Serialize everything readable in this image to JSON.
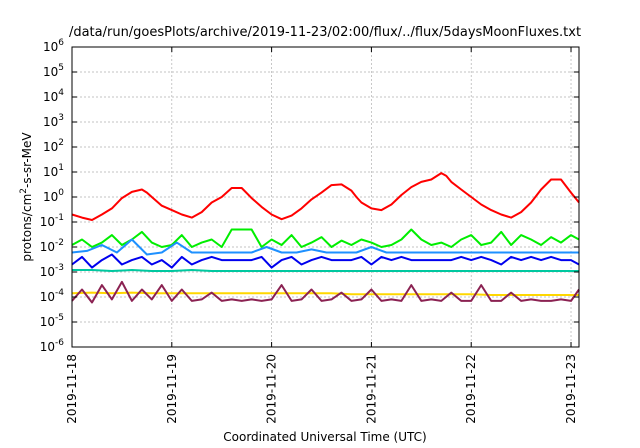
{
  "chart_data": {
    "type": "line",
    "title": "/data/run/goesPlots/archive/2019-11-23/02:00/flux/../flux/5daysMoonFluxes.txt",
    "xlabel": "Coordinated Universal Time (UTC)",
    "ylabel": "protons/cm²-s-sr-MeV",
    "ylabel_parts": {
      "base": "protons/cm",
      "sup": "2",
      "rest": "-s-sr-MeV"
    },
    "yscale": "log",
    "ylim_exp": [
      -6,
      6
    ],
    "y_ticks": [
      {
        "exp": -6,
        "label": "-6"
      },
      {
        "exp": -5,
        "label": "-5"
      },
      {
        "exp": -4,
        "label": "-4"
      },
      {
        "exp": -3,
        "label": "-3"
      },
      {
        "exp": -2,
        "label": "-2"
      },
      {
        "exp": -1,
        "label": "-1"
      },
      {
        "exp": 0,
        "label": "0"
      },
      {
        "exp": 1,
        "label": "1"
      },
      {
        "exp": 2,
        "label": "2"
      },
      {
        "exp": 3,
        "label": "3"
      },
      {
        "exp": 4,
        "label": "4"
      },
      {
        "exp": 5,
        "label": "5"
      },
      {
        "exp": 6,
        "label": "6"
      }
    ],
    "y_tick_base": "10",
    "x_ticks": [
      "2019-11-18",
      "2019-11-19",
      "2019-11-20",
      "2019-11-21",
      "2019-11-22",
      "2019-11-23"
    ],
    "xlim_days": [
      0,
      5.08
    ],
    "grid": true,
    "series": [
      {
        "color": "#ff0000",
        "x": [
          0.0,
          0.1,
          0.2,
          0.3,
          0.4,
          0.5,
          0.6,
          0.7,
          0.75,
          0.8,
          0.9,
          1.0,
          1.1,
          1.2,
          1.3,
          1.4,
          1.5,
          1.6,
          1.65,
          1.7,
          1.8,
          1.9,
          2.0,
          2.1,
          2.2,
          2.3,
          2.4,
          2.5,
          2.6,
          2.7,
          2.8,
          2.85,
          2.9,
          3.0,
          3.1,
          3.2,
          3.3,
          3.4,
          3.5,
          3.6,
          3.7,
          3.75,
          3.8,
          3.9,
          4.0,
          4.1,
          4.2,
          4.3,
          4.4,
          4.5,
          4.6,
          4.7,
          4.8,
          4.9,
          5.0,
          5.08
        ],
        "y": [
          0.2,
          0.15,
          0.12,
          0.2,
          0.35,
          0.9,
          1.6,
          2.0,
          1.5,
          1.0,
          0.45,
          0.3,
          0.2,
          0.15,
          0.25,
          0.6,
          1.0,
          2.3,
          2.3,
          2.3,
          0.9,
          0.4,
          0.2,
          0.13,
          0.18,
          0.35,
          0.8,
          1.5,
          3.0,
          3.2,
          1.8,
          1.0,
          0.6,
          0.35,
          0.3,
          0.5,
          1.2,
          2.5,
          4.0,
          5.0,
          9.0,
          7.0,
          4.0,
          2.0,
          1.0,
          0.5,
          0.3,
          0.2,
          0.15,
          0.25,
          0.6,
          2.0,
          5.0,
          5.0,
          1.5,
          0.6
        ]
      },
      {
        "color": "#00ee00",
        "x": [
          0.0,
          0.1,
          0.2,
          0.3,
          0.4,
          0.5,
          0.6,
          0.7,
          0.8,
          0.9,
          1.0,
          1.1,
          1.2,
          1.3,
          1.4,
          1.5,
          1.6,
          1.7,
          1.8,
          1.9,
          2.0,
          2.1,
          2.2,
          2.3,
          2.4,
          2.5,
          2.6,
          2.7,
          2.8,
          2.9,
          3.0,
          3.1,
          3.2,
          3.3,
          3.4,
          3.5,
          3.6,
          3.7,
          3.8,
          3.9,
          4.0,
          4.1,
          4.2,
          4.3,
          4.4,
          4.5,
          4.6,
          4.7,
          4.8,
          4.9,
          5.0,
          5.08
        ],
        "y": [
          0.012,
          0.02,
          0.01,
          0.015,
          0.03,
          0.012,
          0.02,
          0.04,
          0.015,
          0.01,
          0.012,
          0.03,
          0.01,
          0.015,
          0.02,
          0.01,
          0.05,
          0.05,
          0.05,
          0.01,
          0.02,
          0.012,
          0.03,
          0.01,
          0.015,
          0.025,
          0.01,
          0.018,
          0.012,
          0.02,
          0.015,
          0.01,
          0.012,
          0.02,
          0.05,
          0.02,
          0.012,
          0.015,
          0.01,
          0.02,
          0.03,
          0.012,
          0.015,
          0.04,
          0.012,
          0.03,
          0.02,
          0.012,
          0.025,
          0.015,
          0.03,
          0.02
        ]
      },
      {
        "color": "#1e90ff",
        "x": [
          0.0,
          0.15,
          0.3,
          0.45,
          0.6,
          0.75,
          0.9,
          1.05,
          1.2,
          1.35,
          1.5,
          1.65,
          1.8,
          1.95,
          2.1,
          2.25,
          2.4,
          2.55,
          2.7,
          2.85,
          3.0,
          3.15,
          3.3,
          3.45,
          3.6,
          3.75,
          3.9,
          4.05,
          4.2,
          4.35,
          4.5,
          4.65,
          4.8,
          4.95,
          5.08
        ],
        "y": [
          0.006,
          0.007,
          0.012,
          0.006,
          0.02,
          0.005,
          0.006,
          0.015,
          0.006,
          0.006,
          0.006,
          0.006,
          0.006,
          0.01,
          0.006,
          0.006,
          0.008,
          0.006,
          0.006,
          0.006,
          0.01,
          0.006,
          0.006,
          0.006,
          0.006,
          0.006,
          0.006,
          0.006,
          0.006,
          0.006,
          0.006,
          0.006,
          0.006,
          0.006,
          0.006
        ]
      },
      {
        "color": "#0000ee",
        "x": [
          0.0,
          0.1,
          0.2,
          0.3,
          0.4,
          0.5,
          0.6,
          0.7,
          0.8,
          0.9,
          1.0,
          1.1,
          1.2,
          1.3,
          1.4,
          1.5,
          1.6,
          1.7,
          1.8,
          1.9,
          2.0,
          2.1,
          2.2,
          2.3,
          2.4,
          2.5,
          2.6,
          2.7,
          2.8,
          2.9,
          3.0,
          3.1,
          3.2,
          3.3,
          3.4,
          3.5,
          3.6,
          3.7,
          3.8,
          3.9,
          4.0,
          4.1,
          4.2,
          4.3,
          4.4,
          4.5,
          4.6,
          4.7,
          4.8,
          4.9,
          5.0,
          5.08
        ],
        "y": [
          0.002,
          0.004,
          0.0015,
          0.003,
          0.005,
          0.002,
          0.003,
          0.004,
          0.002,
          0.003,
          0.0015,
          0.004,
          0.002,
          0.003,
          0.004,
          0.003,
          0.003,
          0.003,
          0.003,
          0.004,
          0.0015,
          0.003,
          0.004,
          0.002,
          0.003,
          0.004,
          0.003,
          0.003,
          0.003,
          0.004,
          0.002,
          0.004,
          0.003,
          0.004,
          0.003,
          0.003,
          0.003,
          0.003,
          0.003,
          0.004,
          0.003,
          0.004,
          0.003,
          0.002,
          0.004,
          0.003,
          0.004,
          0.003,
          0.004,
          0.003,
          0.003,
          0.002
        ]
      },
      {
        "color": "#00c8a0",
        "x": [
          0.0,
          0.2,
          0.4,
          0.6,
          0.8,
          1.0,
          1.2,
          1.4,
          1.6,
          1.8,
          2.0,
          2.2,
          2.4,
          2.6,
          2.8,
          3.0,
          3.2,
          3.4,
          3.6,
          3.8,
          4.0,
          4.2,
          4.4,
          4.6,
          4.8,
          5.0,
          5.08
        ],
        "y": [
          0.0012,
          0.0012,
          0.0011,
          0.0012,
          0.0011,
          0.0011,
          0.0012,
          0.0011,
          0.0011,
          0.0011,
          0.0011,
          0.0011,
          0.0011,
          0.0011,
          0.0011,
          0.0011,
          0.0011,
          0.0011,
          0.0011,
          0.0011,
          0.0011,
          0.0011,
          0.0011,
          0.0011,
          0.0011,
          0.0011,
          0.0011
        ]
      },
      {
        "color": "#ffd700",
        "x": [
          0.0,
          0.2,
          0.4,
          0.6,
          0.8,
          1.0,
          1.2,
          1.4,
          1.6,
          1.8,
          2.0,
          2.2,
          2.4,
          2.6,
          2.8,
          3.0,
          3.2,
          3.4,
          3.6,
          3.8,
          4.0,
          4.2,
          4.4,
          4.6,
          4.8,
          5.0,
          5.08
        ],
        "y": [
          0.00014,
          0.00015,
          0.00014,
          0.00015,
          0.00014,
          0.00014,
          0.00014,
          0.00014,
          0.00014,
          0.00014,
          0.00014,
          0.00014,
          0.00014,
          0.00014,
          0.00013,
          0.00013,
          0.00013,
          0.00013,
          0.00013,
          0.00013,
          0.00013,
          0.00012,
          0.00012,
          0.00012,
          0.00012,
          0.00012,
          0.00012
        ]
      },
      {
        "color": "#8b2252",
        "x": [
          0.0,
          0.1,
          0.2,
          0.3,
          0.4,
          0.5,
          0.6,
          0.7,
          0.8,
          0.9,
          1.0,
          1.1,
          1.2,
          1.3,
          1.4,
          1.5,
          1.6,
          1.7,
          1.8,
          1.9,
          2.0,
          2.1,
          2.2,
          2.3,
          2.4,
          2.5,
          2.6,
          2.7,
          2.8,
          2.9,
          3.0,
          3.1,
          3.2,
          3.3,
          3.4,
          3.5,
          3.6,
          3.7,
          3.8,
          3.9,
          4.0,
          4.1,
          4.2,
          4.3,
          4.4,
          4.5,
          4.6,
          4.7,
          4.8,
          4.9,
          5.0,
          5.08
        ],
        "y": [
          7e-05,
          0.0002,
          6e-05,
          0.0003,
          8e-05,
          0.0004,
          7e-05,
          0.0002,
          8e-05,
          0.0003,
          7e-05,
          0.0002,
          7e-05,
          8e-05,
          0.00015,
          7e-05,
          8e-05,
          7e-05,
          8e-05,
          7e-05,
          8e-05,
          0.0003,
          7e-05,
          8e-05,
          0.0002,
          7e-05,
          8e-05,
          0.00015,
          7e-05,
          8e-05,
          0.0002,
          7e-05,
          8e-05,
          7e-05,
          0.0003,
          7e-05,
          8e-05,
          7e-05,
          0.00015,
          7e-05,
          7e-05,
          0.0003,
          7e-05,
          7e-05,
          0.00015,
          7e-05,
          8e-05,
          7e-05,
          7e-05,
          8e-05,
          7e-05,
          0.0002
        ]
      }
    ]
  }
}
